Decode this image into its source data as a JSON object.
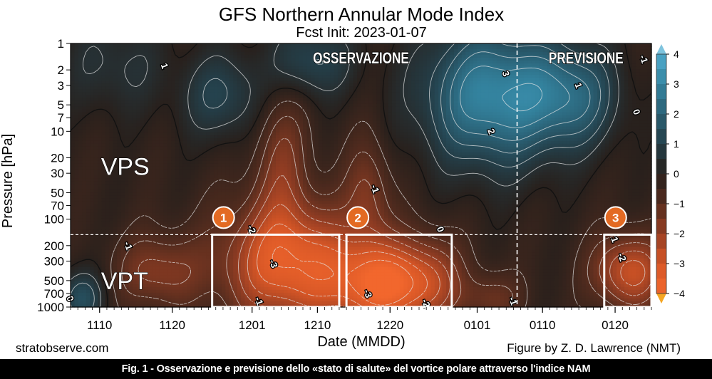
{
  "chart_data": {
    "type": "heatmap",
    "title": "GFS Northern Annular Mode Index",
    "subtitle": "Fcst Init: 2023-01-07",
    "xlabel": "Date (MMDD)",
    "ylabel": "Pressure [hPa]",
    "x_ticks": [
      "1110",
      "1120",
      "1201",
      "1210",
      "1220",
      "0101",
      "0110",
      "0120"
    ],
    "x_tick_days": [
      4,
      14,
      25,
      34,
      44,
      56,
      65,
      75
    ],
    "x_range_days": [
      0,
      80
    ],
    "y_ticks": [
      1,
      2,
      3,
      5,
      7,
      10,
      20,
      30,
      50,
      70,
      100,
      200,
      300,
      500,
      700,
      1000
    ],
    "y_range_hPa": [
      1,
      1000
    ],
    "y_scale": "log",
    "colorbar_ticks": [
      4,
      3,
      2,
      1,
      0,
      -1,
      -2,
      -3,
      -4
    ],
    "colorbar_range": [
      -4,
      4
    ],
    "forecast_start_day": 61.5,
    "tropopause_divider_hPa": 150,
    "contour_labels": [
      {
        "text": "1",
        "day": 13,
        "hPa": 1.8
      },
      {
        "text": "3",
        "day": 60,
        "hPa": 2.2
      },
      {
        "text": "2",
        "day": 58,
        "hPa": 10
      },
      {
        "text": "1",
        "day": 70,
        "hPa": 3
      },
      {
        "text": "0",
        "day": 78,
        "hPa": 6
      },
      {
        "text": "-1",
        "day": 79,
        "hPa": 1.5
      },
      {
        "text": "-1",
        "day": 42,
        "hPa": 45
      },
      {
        "text": "-1",
        "day": 8,
        "hPa": 200
      },
      {
        "text": "-2",
        "day": 25,
        "hPa": 130
      },
      {
        "text": "-3",
        "day": 28,
        "hPa": 320
      },
      {
        "text": "-1",
        "day": 26,
        "hPa": 850
      },
      {
        "text": "0",
        "day": 51,
        "hPa": 130
      },
      {
        "text": "-3",
        "day": 41,
        "hPa": 700
      },
      {
        "text": "-2",
        "day": 49,
        "hPa": 900
      },
      {
        "text": "-1",
        "day": 61,
        "hPa": 850
      },
      {
        "text": "1",
        "day": 75,
        "hPa": 170
      },
      {
        "text": "-2",
        "day": 76,
        "hPa": 270
      },
      {
        "text": "0",
        "day": 0,
        "hPa": 800
      }
    ],
    "regions": [
      {
        "label": "VPS",
        "day": 4,
        "hPa": 25
      },
      {
        "label": "VPT",
        "day": 4,
        "hPa": 500
      }
    ],
    "period_labels": [
      {
        "label": "OSSERVAZIONE",
        "day": 40,
        "hPa": 1.45
      },
      {
        "label": "PREVISIONE",
        "day": 71,
        "hPa": 1.45
      }
    ],
    "event_boxes": [
      {
        "number": "1",
        "day_start": 19.5,
        "day_end": 37,
        "hPa_top": 150,
        "hPa_bottom": 1000
      },
      {
        "number": "2",
        "day_start": 38,
        "day_end": 52.5,
        "hPa_top": 150,
        "hPa_bottom": 1000
      },
      {
        "number": "3",
        "day_start": 73.5,
        "day_end": 80,
        "hPa_top": 150,
        "hPa_bottom": 1000
      }
    ],
    "colors": {
      "strong_positive": "#3a9bbf",
      "neutral": "#2b1f18",
      "strong_negative": "#f26a30",
      "badge": "#e36a23",
      "colorbar_top_arrow": "#7fc4de",
      "colorbar_bottom_arrow": "#f5a623"
    }
  },
  "footer": {
    "left_credit": "stratobserve.com",
    "right_credit": "Figure by Z. D. Lawrence (NMT)"
  },
  "caption": "Fig. 1 - Osservazione e previsione dello «stato di salute» del vortice polare attraverso l'indice NAM"
}
